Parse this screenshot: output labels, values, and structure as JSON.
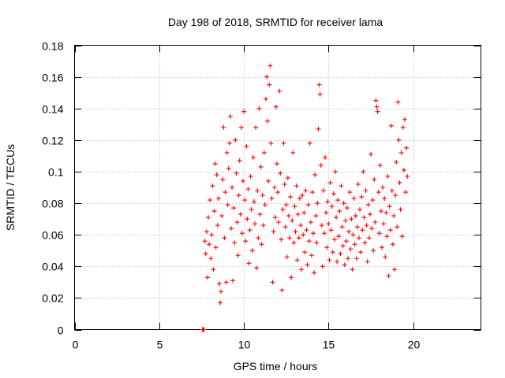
{
  "chart_data": {
    "type": "scatter",
    "title": "Day 198 of 2018, SRMTID for receiver lama",
    "xlabel": "GPS time / hours",
    "ylabel": "SRMTID / TECUs",
    "xlim": [
      0,
      24
    ],
    "ylim": [
      0,
      0.18
    ],
    "x_ticks": [
      "0",
      "5",
      "10",
      "15",
      "20"
    ],
    "y_ticks": [
      "0",
      "0.02",
      "0.04",
      "0.06",
      "0.08",
      "0.1",
      "0.12",
      "0.14",
      "0.16",
      "0.18"
    ],
    "grid": true,
    "marker": "plus",
    "color": "#ff0000",
    "series": [
      {
        "name": "SRMTID",
        "points": [
          [
            7.55,
            0.0
          ],
          [
            7.6,
            0.0
          ],
          [
            7.65,
            0.0
          ],
          [
            7.7,
            0.056
          ],
          [
            7.75,
            0.048
          ],
          [
            7.8,
            0.062
          ],
          [
            7.85,
            0.033
          ],
          [
            7.9,
            0.071
          ],
          [
            7.95,
            0.054
          ],
          [
            8.0,
            0.082
          ],
          [
            8.05,
            0.045
          ],
          [
            8.1,
            0.06
          ],
          [
            8.15,
            0.091
          ],
          [
            8.2,
            0.038
          ],
          [
            8.25,
            0.075
          ],
          [
            8.3,
            0.105
          ],
          [
            8.35,
            0.052
          ],
          [
            8.4,
            0.098
          ],
          [
            8.45,
            0.066
          ],
          [
            8.5,
            0.083
          ],
          [
            8.55,
            0.029
          ],
          [
            8.6,
            0.017
          ],
          [
            8.65,
            0.024
          ],
          [
            8.7,
            0.072
          ],
          [
            8.75,
            0.095
          ],
          [
            8.8,
            0.128
          ],
          [
            8.85,
            0.058
          ],
          [
            8.9,
            0.087
          ],
          [
            8.95,
            0.03
          ],
          [
            9.0,
            0.112
          ],
          [
            9.05,
            0.079
          ],
          [
            9.1,
            0.102
          ],
          [
            9.15,
            0.118
          ],
          [
            9.2,
            0.135
          ],
          [
            9.25,
            0.064
          ],
          [
            9.3,
            0.09
          ],
          [
            9.35,
            0.031
          ],
          [
            9.4,
            0.077
          ],
          [
            9.45,
            0.055
          ],
          [
            9.5,
            0.12
          ],
          [
            9.55,
            0.099
          ],
          [
            9.6,
            0.068
          ],
          [
            9.65,
            0.047
          ],
          [
            9.7,
            0.085
          ],
          [
            9.75,
            0.107
          ],
          [
            9.8,
            0.073
          ],
          [
            9.85,
            0.128
          ],
          [
            9.9,
            0.061
          ],
          [
            9.95,
            0.094
          ],
          [
            10.0,
            0.138
          ],
          [
            10.05,
            0.082
          ],
          [
            10.1,
            0.056
          ],
          [
            10.15,
            0.116
          ],
          [
            10.2,
            0.07
          ],
          [
            10.25,
            0.089
          ],
          [
            10.3,
            0.042
          ],
          [
            10.35,
            0.063
          ],
          [
            10.4,
            0.097
          ],
          [
            10.45,
            0.076
          ],
          [
            10.5,
            0.05
          ],
          [
            10.55,
            0.109
          ],
          [
            10.6,
            0.081
          ],
          [
            10.65,
            0.067
          ],
          [
            10.7,
            0.128
          ],
          [
            10.75,
            0.039
          ],
          [
            10.8,
            0.088
          ],
          [
            10.85,
            0.058
          ],
          [
            10.9,
            0.14
          ],
          [
            10.95,
            0.073
          ],
          [
            11.0,
            0.103
          ],
          [
            11.05,
            0.054
          ],
          [
            11.1,
            0.085
          ],
          [
            11.15,
            0.066
          ],
          [
            11.2,
            0.112
          ],
          [
            11.25,
            0.079
          ],
          [
            11.3,
            0.146
          ],
          [
            11.35,
            0.16
          ],
          [
            11.4,
            0.132
          ],
          [
            11.45,
            0.094
          ],
          [
            11.5,
            0.155
          ],
          [
            11.55,
            0.167
          ],
          [
            11.6,
            0.118
          ],
          [
            11.65,
            0.083
          ],
          [
            11.7,
            0.03
          ],
          [
            11.75,
            0.062
          ],
          [
            11.8,
            0.09
          ],
          [
            11.85,
            0.071
          ],
          [
            11.9,
            0.141
          ],
          [
            11.95,
            0.105
          ],
          [
            12.0,
            0.087
          ],
          [
            12.05,
            0.068
          ],
          [
            12.1,
            0.151
          ],
          [
            12.15,
            0.099
          ],
          [
            12.2,
            0.057
          ],
          [
            12.25,
            0.025
          ],
          [
            12.3,
            0.076
          ],
          [
            12.35,
            0.118
          ],
          [
            12.4,
            0.092
          ],
          [
            12.45,
            0.065
          ],
          [
            12.5,
            0.079
          ],
          [
            12.55,
            0.046
          ],
          [
            12.6,
            0.096
          ],
          [
            12.65,
            0.072
          ],
          [
            12.7,
            0.058
          ],
          [
            12.75,
            0.084
          ],
          [
            12.8,
            0.033
          ],
          [
            12.85,
            0.069
          ],
          [
            12.9,
            0.112
          ],
          [
            12.95,
            0.055
          ],
          [
            13.0,
            0.078
          ],
          [
            13.05,
            0.062
          ],
          [
            13.1,
            0.091
          ],
          [
            13.15,
            0.044
          ],
          [
            13.2,
            0.073
          ],
          [
            13.25,
            0.058
          ],
          [
            13.3,
            0.083
          ],
          [
            13.35,
            0.066
          ],
          [
            13.4,
            0.038
          ],
          [
            13.45,
            0.085
          ],
          [
            13.5,
            0.06
          ],
          [
            13.55,
            0.074
          ],
          [
            13.6,
            0.049
          ],
          [
            13.65,
            0.088
          ],
          [
            13.7,
            0.063
          ],
          [
            13.75,
            0.041
          ],
          [
            13.8,
            0.079
          ],
          [
            13.85,
            0.056
          ],
          [
            13.9,
            0.118
          ],
          [
            13.95,
            0.068
          ],
          [
            14.0,
            0.047
          ],
          [
            14.05,
            0.087
          ],
          [
            14.1,
            0.061
          ],
          [
            14.15,
            0.036
          ],
          [
            14.2,
            0.098
          ],
          [
            14.25,
            0.072
          ],
          [
            14.3,
            0.055
          ],
          [
            14.35,
            0.08
          ],
          [
            14.4,
            0.127
          ],
          [
            14.45,
            0.155
          ],
          [
            14.5,
            0.149
          ],
          [
            14.55,
            0.104
          ],
          [
            14.6,
            0.066
          ],
          [
            14.65,
            0.04
          ],
          [
            14.7,
            0.088
          ],
          [
            14.75,
            0.061
          ],
          [
            14.8,
            0.109
          ],
          [
            14.85,
            0.074
          ],
          [
            14.9,
            0.052
          ],
          [
            14.95,
            0.081
          ],
          [
            15.0,
            0.067
          ],
          [
            15.05,
            0.044
          ],
          [
            15.1,
            0.093
          ],
          [
            15.15,
            0.063
          ],
          [
            15.2,
            0.078
          ],
          [
            15.25,
            0.049
          ],
          [
            15.3,
            0.086
          ],
          [
            15.35,
            0.057
          ],
          [
            15.4,
            0.1
          ],
          [
            15.45,
            0.071
          ],
          [
            15.5,
            0.043
          ],
          [
            15.55,
            0.082
          ],
          [
            15.6,
            0.059
          ],
          [
            15.65,
            0.075
          ],
          [
            15.7,
            0.048
          ],
          [
            15.75,
            0.091
          ],
          [
            15.8,
            0.065
          ],
          [
            15.85,
            0.053
          ],
          [
            15.9,
            0.08
          ],
          [
            15.95,
            0.041
          ],
          [
            16.0,
            0.069
          ],
          [
            16.05,
            0.056
          ],
          [
            16.1,
            0.077
          ],
          [
            16.15,
            0.045
          ],
          [
            16.2,
            0.062
          ],
          [
            16.25,
            0.087
          ],
          [
            16.3,
            0.051
          ],
          [
            16.35,
            0.07
          ],
          [
            16.4,
            0.038
          ],
          [
            16.45,
            0.06
          ],
          [
            16.5,
            0.083
          ],
          [
            16.55,
            0.054
          ],
          [
            16.6,
            0.072
          ],
          [
            16.65,
            0.045
          ],
          [
            16.7,
            0.065
          ],
          [
            16.75,
            0.092
          ],
          [
            16.8,
            0.058
          ],
          [
            16.85,
            0.076
          ],
          [
            16.9,
            0.049
          ],
          [
            16.95,
            0.084
          ],
          [
            17.0,
            0.063
          ],
          [
            17.05,
            0.1
          ],
          [
            17.1,
            0.071
          ],
          [
            17.15,
            0.055
          ],
          [
            17.2,
            0.088
          ],
          [
            17.25,
            0.066
          ],
          [
            17.3,
            0.043
          ],
          [
            17.35,
            0.079
          ],
          [
            17.4,
            0.058
          ],
          [
            17.45,
            0.073
          ],
          [
            17.5,
            0.111
          ],
          [
            17.55,
            0.064
          ],
          [
            17.6,
            0.082
          ],
          [
            17.65,
            0.05
          ],
          [
            17.7,
            0.095
          ],
          [
            17.75,
            0.068
          ],
          [
            17.8,
            0.145
          ],
          [
            17.85,
            0.141
          ],
          [
            17.9,
            0.138
          ],
          [
            17.95,
            0.087
          ],
          [
            18.0,
            0.061
          ],
          [
            18.05,
            0.104
          ],
          [
            18.1,
            0.075
          ],
          [
            18.15,
            0.052
          ],
          [
            18.2,
            0.09
          ],
          [
            18.25,
            0.067
          ],
          [
            18.3,
            0.083
          ],
          [
            18.35,
            0.046
          ],
          [
            18.4,
            0.074
          ],
          [
            18.45,
            0.059
          ],
          [
            18.5,
            0.097
          ],
          [
            18.55,
            0.034
          ],
          [
            18.6,
            0.078
          ],
          [
            18.65,
            0.063
          ],
          [
            18.7,
            0.129
          ],
          [
            18.75,
            0.088
          ],
          [
            18.8,
            0.054
          ],
          [
            18.85,
            0.072
          ],
          [
            18.9,
            0.038
          ],
          [
            18.95,
            0.085
          ],
          [
            19.0,
            0.106
          ],
          [
            19.05,
            0.065
          ],
          [
            19.1,
            0.144
          ],
          [
            19.15,
            0.12
          ],
          [
            19.2,
            0.093
          ],
          [
            19.25,
            0.076
          ],
          [
            19.3,
            0.112
          ],
          [
            19.35,
            0.059
          ],
          [
            19.4,
            0.128
          ],
          [
            19.45,
            0.101
          ],
          [
            19.5,
            0.133
          ],
          [
            19.55,
            0.087
          ],
          [
            19.6,
            0.115
          ],
          [
            19.65,
            0.097
          ]
        ]
      }
    ]
  }
}
